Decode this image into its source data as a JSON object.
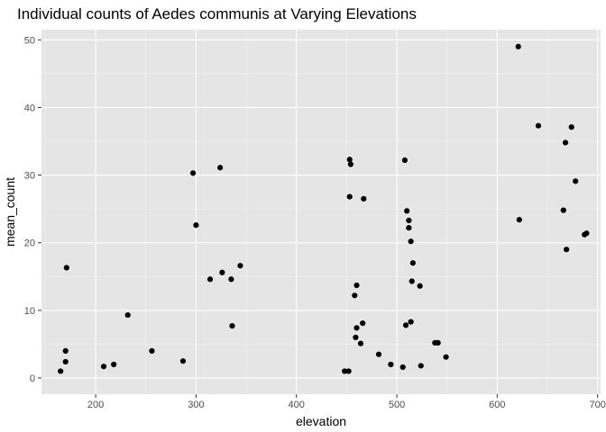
{
  "chart_data": {
    "type": "scatter",
    "title": "Individual counts of Aedes communis at Varying Elevations",
    "xlabel": "elevation",
    "ylabel": "mean_count",
    "xlim": [
      146,
      703
    ],
    "ylim": [
      -2.4,
      51.5
    ],
    "x_ticks": [
      100,
      200,
      300,
      400,
      500,
      600,
      700
    ],
    "x_tick_labels": [
      "",
      "200",
      "300",
      "400",
      "500",
      "600",
      "700"
    ],
    "y_ticks": [
      0,
      10,
      20,
      30,
      40,
      50
    ],
    "y_tick_labels": [
      "0",
      "10",
      "20",
      "30",
      "40",
      "50"
    ],
    "grid": true,
    "legend": "none",
    "colors": {
      "panel": "#e5e5e5",
      "grid_major": "#ffffff",
      "grid_minor": "#f2f2f2",
      "point": "#000000",
      "tick_text": "#4d4d4d",
      "tick_mark": "#333333"
    },
    "points": [
      {
        "x": 165,
        "y": 1.0
      },
      {
        "x": 170,
        "y": 2.4
      },
      {
        "x": 170,
        "y": 4.0
      },
      {
        "x": 171,
        "y": 16.3
      },
      {
        "x": 208,
        "y": 1.7
      },
      {
        "x": 218,
        "y": 2.0
      },
      {
        "x": 232,
        "y": 9.3
      },
      {
        "x": 256,
        "y": 4.0
      },
      {
        "x": 287,
        "y": 2.5
      },
      {
        "x": 297,
        "y": 30.3
      },
      {
        "x": 300,
        "y": 22.6
      },
      {
        "x": 314,
        "y": 14.6
      },
      {
        "x": 324,
        "y": 31.1
      },
      {
        "x": 326,
        "y": 15.6
      },
      {
        "x": 335,
        "y": 14.6
      },
      {
        "x": 336,
        "y": 7.7
      },
      {
        "x": 344,
        "y": 16.6
      },
      {
        "x": 448,
        "y": 1.0
      },
      {
        "x": 452,
        "y": 1.0
      },
      {
        "x": 453,
        "y": 32.3
      },
      {
        "x": 453,
        "y": 26.8
      },
      {
        "x": 454,
        "y": 31.6
      },
      {
        "x": 458,
        "y": 12.2
      },
      {
        "x": 459,
        "y": 6.0
      },
      {
        "x": 460,
        "y": 13.7
      },
      {
        "x": 460,
        "y": 7.4
      },
      {
        "x": 464,
        "y": 5.1
      },
      {
        "x": 466,
        "y": 8.1
      },
      {
        "x": 467,
        "y": 26.5
      },
      {
        "x": 482,
        "y": 3.5
      },
      {
        "x": 494,
        "y": 2.0
      },
      {
        "x": 506,
        "y": 1.6
      },
      {
        "x": 508,
        "y": 32.2
      },
      {
        "x": 509,
        "y": 7.8
      },
      {
        "x": 510,
        "y": 24.7
      },
      {
        "x": 512,
        "y": 23.3
      },
      {
        "x": 512,
        "y": 22.2
      },
      {
        "x": 514,
        "y": 8.3
      },
      {
        "x": 514,
        "y": 20.2
      },
      {
        "x": 515,
        "y": 14.3
      },
      {
        "x": 516,
        "y": 17.0
      },
      {
        "x": 523,
        "y": 13.6
      },
      {
        "x": 524,
        "y": 1.8
      },
      {
        "x": 538,
        "y": 5.2
      },
      {
        "x": 541,
        "y": 5.2
      },
      {
        "x": 549,
        "y": 3.1
      },
      {
        "x": 621,
        "y": 49.0
      },
      {
        "x": 622,
        "y": 23.4
      },
      {
        "x": 641,
        "y": 37.3
      },
      {
        "x": 666,
        "y": 24.8
      },
      {
        "x": 668,
        "y": 34.8
      },
      {
        "x": 669,
        "y": 19.0
      },
      {
        "x": 674,
        "y": 37.1
      },
      {
        "x": 678,
        "y": 29.1
      },
      {
        "x": 687,
        "y": 21.2
      },
      {
        "x": 689,
        "y": 21.4
      }
    ]
  }
}
